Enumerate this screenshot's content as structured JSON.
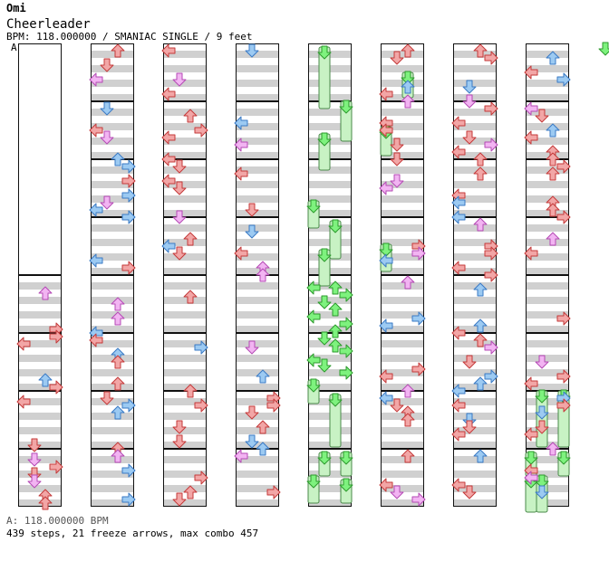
{
  "song": {
    "artist": "Omi",
    "title": "Cheerleader",
    "subtitle": "BPM: 118.000000 / SMANIAC SINGLE / 9 feet",
    "bpm_marker": "A"
  },
  "footer": {
    "bpm_line": "A: 118.000000 BPM",
    "stats_line": "439 steps, 21 freeze arrows, max combo 457"
  },
  "colors": {
    "red": "#f2a6a6",
    "red_stroke": "#c43a3a",
    "blue": "#9ccaf2",
    "blue_stroke": "#3a7ac4",
    "pink": "#f2b4f2",
    "pink_stroke": "#b44ab4",
    "green": "#7ef27e",
    "green_stroke": "#2c9a2c",
    "band": "#d0d0d0"
  },
  "lanes": [
    "left",
    "down",
    "up",
    "right"
  ],
  "icons": {
    "left": "left-arrow-icon",
    "down": "down-arrow-icon",
    "up": "up-arrow-icon",
    "right": "right-arrow-icon"
  }
}
